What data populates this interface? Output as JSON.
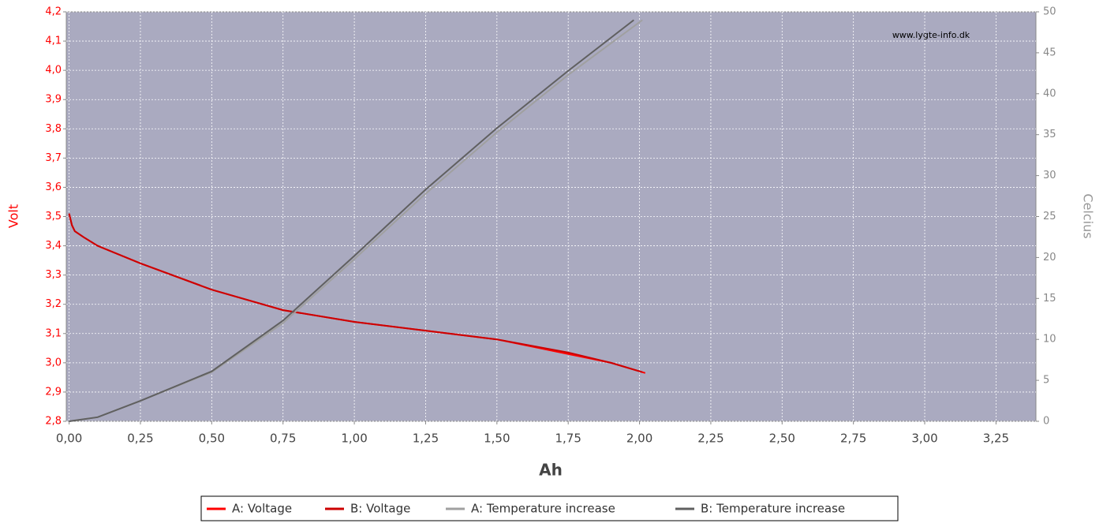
{
  "chart_data": {
    "type": "line",
    "watermark": "www.lygte-info.dk",
    "x_label": "Ah",
    "y_label": "Volt",
    "y2_label": "Celcius",
    "xlim": [
      -0.01,
      3.39
    ],
    "ylim": [
      2.8,
      4.2
    ],
    "y2lim": [
      0,
      50
    ],
    "xticks": [
      {
        "value": 0,
        "label": "0,00"
      },
      {
        "value": 0.25,
        "label": "0,25"
      },
      {
        "value": 0.5,
        "label": "0,50"
      },
      {
        "value": 0.75,
        "label": "0,75"
      },
      {
        "value": 1,
        "label": "1,00"
      },
      {
        "value": 1.25,
        "label": "1,25"
      },
      {
        "value": 1.5,
        "label": "1,50"
      },
      {
        "value": 1.75,
        "label": "1,75"
      },
      {
        "value": 2,
        "label": "2,00"
      },
      {
        "value": 2.25,
        "label": "2,25"
      },
      {
        "value": 2.5,
        "label": "2,50"
      },
      {
        "value": 2.75,
        "label": "2,75"
      },
      {
        "value": 3,
        "label": "3,00"
      },
      {
        "value": 3.25,
        "label": "3,25"
      }
    ],
    "yticks": [
      {
        "value": 2.8,
        "label": "2,8"
      },
      {
        "value": 2.9,
        "label": "2,9"
      },
      {
        "value": 3.0,
        "label": "3,0"
      },
      {
        "value": 3.1,
        "label": "3,1"
      },
      {
        "value": 3.2,
        "label": "3,2"
      },
      {
        "value": 3.3,
        "label": "3,3"
      },
      {
        "value": 3.4,
        "label": "3,4"
      },
      {
        "value": 3.5,
        "label": "3,5"
      },
      {
        "value": 3.6,
        "label": "3,6"
      },
      {
        "value": 3.7,
        "label": "3,7"
      },
      {
        "value": 3.8,
        "label": "3,8"
      },
      {
        "value": 3.9,
        "label": "3,9"
      },
      {
        "value": 4.0,
        "label": "4,0"
      },
      {
        "value": 4.1,
        "label": "4,1"
      },
      {
        "value": 4.2,
        "label": "4,2"
      }
    ],
    "y2ticks": [
      0,
      5,
      10,
      15,
      20,
      25,
      30,
      35,
      40,
      45,
      50
    ],
    "grid": true,
    "series": [
      {
        "name": "A: Voltage",
        "color": "#ff0000",
        "x": [
          0,
          0.01,
          0.02,
          0.05,
          0.1,
          0.25,
          0.5,
          0.75,
          1.0,
          1.25,
          1.5,
          1.75,
          1.9,
          2.02
        ],
        "values": [
          3.51,
          3.47,
          3.45,
          3.43,
          3.4,
          3.34,
          3.25,
          3.18,
          3.14,
          3.11,
          3.08,
          3.03,
          3.0,
          2.965
        ]
      },
      {
        "name": "B: Voltage",
        "color": "#cc0000",
        "x": [
          0,
          0.01,
          0.02,
          0.05,
          0.1,
          0.25,
          0.5,
          0.75,
          1.0,
          1.25,
          1.5,
          1.75,
          1.9,
          2.01
        ],
        "values": [
          3.51,
          3.47,
          3.45,
          3.43,
          3.4,
          3.34,
          3.25,
          3.18,
          3.14,
          3.11,
          3.08,
          3.035,
          3.0,
          2.968
        ]
      },
      {
        "name": "A: Temperature increase",
        "color": "#a0a0a0",
        "axis": "y2",
        "x": [
          0,
          0.1,
          0.25,
          0.5,
          0.75,
          1.0,
          1.25,
          1.5,
          1.75,
          2.01
        ],
        "values": [
          0,
          0.5,
          2.5,
          6,
          12,
          19.8,
          27.8,
          35.3,
          42.3,
          49
        ]
      },
      {
        "name": "B: Temperature increase",
        "color": "#606060",
        "axis": "y2",
        "x": [
          0,
          0.1,
          0.25,
          0.5,
          0.75,
          1.0,
          1.25,
          1.5,
          1.75,
          1.98
        ],
        "values": [
          0,
          0.5,
          2.5,
          6.1,
          12.3,
          20.2,
          28.3,
          35.8,
          42.8,
          49
        ]
      }
    ]
  }
}
